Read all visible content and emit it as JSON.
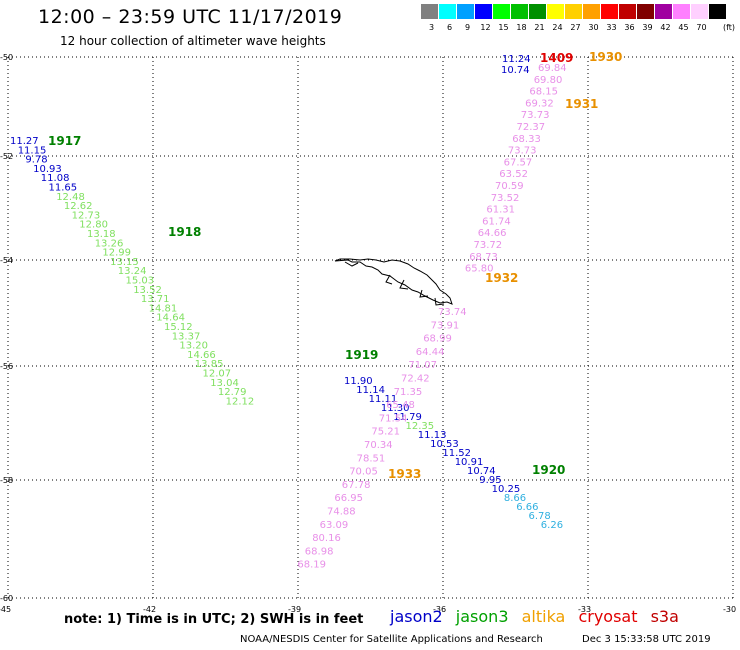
{
  "header": {
    "title": "12:00 – 23:59 UTC 11/17/2019",
    "subtitle": "12 hour collection of altimeter wave heights"
  },
  "scale": {
    "unit": "(ft)",
    "swatches": [
      {
        "color": "#808080",
        "label": "3"
      },
      {
        "color": "#00ffff",
        "label": "6"
      },
      {
        "color": "#00a0ff",
        "label": "9"
      },
      {
        "color": "#0000ff",
        "label": "12"
      },
      {
        "color": "#00ff00",
        "label": "15"
      },
      {
        "color": "#00c000",
        "label": "18"
      },
      {
        "color": "#009000",
        "label": "21"
      },
      {
        "color": "#ffff00",
        "label": "24"
      },
      {
        "color": "#ffd000",
        "label": "27"
      },
      {
        "color": "#ffa000",
        "label": "30"
      },
      {
        "color": "#ff0000",
        "label": "33"
      },
      {
        "color": "#c00000",
        "label": "36"
      },
      {
        "color": "#800000",
        "label": "39"
      },
      {
        "color": "#a000a0",
        "label": "42"
      },
      {
        "color": "#ff80ff",
        "label": "45"
      },
      {
        "color": "#ffd0ff",
        "label": "70"
      },
      {
        "color": "#000000",
        "label": ""
      }
    ]
  },
  "axes": {
    "lon_ticks": [
      "-45",
      "-42",
      "-39",
      "-36",
      "-33",
      "-30"
    ],
    "lat_ticks": [
      "-50",
      "-52",
      "-54",
      "-56",
      "-58",
      "-60"
    ],
    "lon_range": [
      -45,
      -30
    ],
    "lat_range": [
      -50,
      -60
    ]
  },
  "colors": {
    "jason2": "#0000c8",
    "jason3": "#00a000",
    "altika": "#f0a000",
    "cryosat": "#e00000",
    "s3a": "#c00000",
    "pink": "#e890e8",
    "green_light": "#80e060",
    "cyan": "#30b0e0",
    "time_green": "#008000",
    "time_orange": "#e89000",
    "time_red": "#e00000"
  },
  "tracks": {
    "jason3_nw": [
      {
        "t": "11.27",
        "c": "jason2"
      },
      {
        "t": "11.15",
        "c": "jason2"
      },
      {
        "t": "9.78",
        "c": "jason2"
      },
      {
        "t": "10.93",
        "c": "jason2"
      },
      {
        "t": "11.08",
        "c": "jason2"
      },
      {
        "t": "11.65",
        "c": "jason2"
      },
      {
        "t": "12.48",
        "c": "green_light"
      },
      {
        "t": "12.62",
        "c": "green_light"
      },
      {
        "t": "12.73",
        "c": "green_light"
      },
      {
        "t": "12.80",
        "c": "green_light"
      },
      {
        "t": "13.18",
        "c": "green_light"
      },
      {
        "t": "13.26",
        "c": "green_light"
      },
      {
        "t": "12.99",
        "c": "green_light"
      },
      {
        "t": "13.15",
        "c": "green_light"
      },
      {
        "t": "13.24",
        "c": "green_light"
      },
      {
        "t": "15.03",
        "c": "green_light"
      },
      {
        "t": "13.52",
        "c": "green_light"
      },
      {
        "t": "13.71",
        "c": "green_light"
      },
      {
        "t": "14.81",
        "c": "green_light"
      },
      {
        "t": "14.64",
        "c": "green_light"
      },
      {
        "t": "15.12",
        "c": "green_light"
      },
      {
        "t": "13.37",
        "c": "green_light"
      },
      {
        "t": "13.20",
        "c": "green_light"
      },
      {
        "t": "14.66",
        "c": "green_light"
      },
      {
        "t": "13.85",
        "c": "green_light"
      },
      {
        "t": "12.07",
        "c": "green_light"
      },
      {
        "t": "13.04",
        "c": "green_light"
      },
      {
        "t": "12.79",
        "c": "green_light"
      },
      {
        "t": "12.12",
        "c": "green_light"
      }
    ],
    "jason2_se": [
      {
        "t": "11.90",
        "c": "jason2"
      },
      {
        "t": "11.14",
        "c": "jason2"
      },
      {
        "t": "11.11",
        "c": "jason2"
      },
      {
        "t": "11.30",
        "c": "jason2"
      },
      {
        "t": "11.79",
        "c": "jason2"
      },
      {
        "t": "12.35",
        "c": "green_light"
      },
      {
        "t": "11.13",
        "c": "jason2"
      },
      {
        "t": "10.53",
        "c": "jason2"
      },
      {
        "t": "11.52",
        "c": "jason2"
      },
      {
        "t": "10.91",
        "c": "jason2"
      },
      {
        "t": "10.74",
        "c": "jason2"
      },
      {
        "t": "9.95",
        "c": "jason2"
      },
      {
        "t": "10.25",
        "c": "jason2"
      },
      {
        "t": "8.66",
        "c": "cyan"
      },
      {
        "t": "6.66",
        "c": "cyan"
      },
      {
        "t": "6.78",
        "c": "cyan"
      },
      {
        "t": "6.26",
        "c": "cyan"
      }
    ],
    "altika_n": [
      {
        "t": "69.84"
      },
      {
        "t": "69.80"
      },
      {
        "t": "68.15"
      },
      {
        "t": "69.32"
      },
      {
        "t": "73.73"
      },
      {
        "t": "72.37"
      },
      {
        "t": "68.33"
      },
      {
        "t": "73.73"
      },
      {
        "t": "67.57"
      },
      {
        "t": "63.52"
      },
      {
        "t": "70.59"
      },
      {
        "t": "73.52"
      },
      {
        "t": "61.31"
      },
      {
        "t": "61.74"
      },
      {
        "t": "64.66"
      },
      {
        "t": "73.72"
      },
      {
        "t": "68.73"
      },
      {
        "t": "65.80"
      }
    ],
    "altika_s": [
      {
        "t": "73.74"
      },
      {
        "t": "73.91"
      },
      {
        "t": "68.99"
      },
      {
        "t": "64.44"
      },
      {
        "t": "71.07"
      },
      {
        "t": "72.42"
      },
      {
        "t": "71.35"
      },
      {
        "t": "65.48"
      },
      {
        "t": "71.54"
      },
      {
        "t": "75.21"
      },
      {
        "t": "70.34"
      },
      {
        "t": "78.51"
      },
      {
        "t": "70.05"
      },
      {
        "t": "67.78"
      },
      {
        "t": "66.95"
      },
      {
        "t": "74.88"
      },
      {
        "t": "63.09"
      },
      {
        "t": "80.16"
      },
      {
        "t": "68.98"
      },
      {
        "t": "68.19"
      }
    ],
    "top_right": [
      {
        "t": "11.24",
        "c": "jason2"
      },
      {
        "t": "10.74",
        "c": "jason2"
      }
    ]
  },
  "time_labels": {
    "t1917": "1917",
    "t1918": "1918",
    "t1919": "1919",
    "t1920": "1920",
    "t1409": "1409",
    "t1930": "1930",
    "t1931": "1931",
    "t1932": "1932",
    "t1933": "1933"
  },
  "note": "note: 1) Time is in UTC; 2) SWH is in feet",
  "legend": {
    "jason2": "jason2",
    "jason3": "jason3",
    "altika": "altika",
    "cryosat": "cryosat",
    "s3a": "s3a"
  },
  "footer": {
    "agency": "NOAA/NESDIS Center for Satellite Applications and Research",
    "date": "Dec  3 15:33:58 UTC 2019"
  }
}
